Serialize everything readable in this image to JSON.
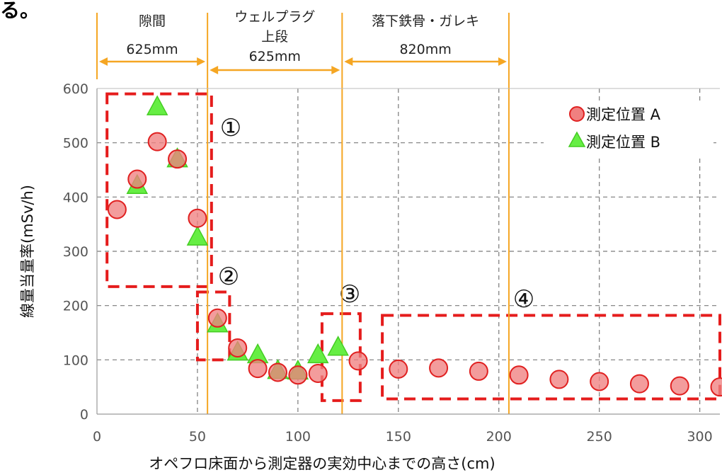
{
  "corner_text": "る。",
  "chart_data": {
    "type": "scatter",
    "title": "",
    "xlabel": "オペフロ床面から測定器の実効中心までの高さ(cm)",
    "ylabel": "線量当量率(mSv/h)",
    "xlim": [
      0,
      310
    ],
    "ylim": [
      0,
      600
    ],
    "x_ticks": [
      "0",
      "50",
      "100",
      "150",
      "200",
      "250",
      "300"
    ],
    "y_ticks": [
      "0",
      "100",
      "200",
      "300",
      "400",
      "500",
      "600"
    ],
    "grid": true,
    "legend_position": "top-right",
    "series": [
      {
        "name": "測定位置 A",
        "marker": "circle",
        "color": "#f08080",
        "edge_color": "#e02020",
        "points": [
          [
            10,
            377
          ],
          [
            20,
            433
          ],
          [
            30,
            502
          ],
          [
            40,
            470
          ],
          [
            50,
            361
          ],
          [
            60,
            177
          ],
          [
            70,
            122
          ],
          [
            80,
            84
          ],
          [
            90,
            77
          ],
          [
            100,
            72
          ],
          [
            110,
            75
          ],
          [
            130,
            98
          ],
          [
            150,
            83
          ],
          [
            170,
            85
          ],
          [
            190,
            79
          ],
          [
            210,
            72
          ],
          [
            230,
            64
          ],
          [
            250,
            60
          ],
          [
            270,
            56
          ],
          [
            290,
            52
          ],
          [
            310,
            50
          ]
        ]
      },
      {
        "name": "測定位置 B",
        "marker": "triangle",
        "color": "#66ee44",
        "edge_color": "#44cc22",
        "points": [
          [
            20,
            421
          ],
          [
            30,
            566
          ],
          [
            40,
            470
          ],
          [
            50,
            326
          ],
          [
            60,
            166
          ],
          [
            70,
            114
          ],
          [
            80,
            109
          ],
          [
            90,
            80
          ],
          [
            100,
            79
          ],
          [
            110,
            109
          ],
          [
            120,
            123
          ]
        ]
      }
    ],
    "annotations": {
      "region_lines": {
        "color": "#f5a623",
        "x_values": [
          55,
          122,
          205
        ]
      },
      "spans": [
        {
          "label_top": "隙間",
          "label_bottom": "625mm",
          "x_from": 0,
          "x_to": 55
        },
        {
          "label_top": "ウェルプラグ",
          "label_mid": "上段",
          "label_bottom": "625mm",
          "x_from": 55,
          "x_to": 122
        },
        {
          "label_top": "落下鉄骨・ガレキ",
          "label_bottom": "820mm",
          "x_from": 122,
          "x_to": 205
        }
      ],
      "zones": [
        {
          "label": "①",
          "x_from": 5,
          "x_to": 57,
          "y_from": 235,
          "y_to": 590
        },
        {
          "label": "②",
          "x_from": 50,
          "x_to": 66,
          "y_from": 100,
          "y_to": 225
        },
        {
          "label": "③",
          "x_from": 112,
          "x_to": 131,
          "y_from": 25,
          "y_to": 185
        },
        {
          "label": "④",
          "x_from": 142,
          "x_to": 310,
          "y_from": 28,
          "y_to": 182
        }
      ]
    }
  }
}
